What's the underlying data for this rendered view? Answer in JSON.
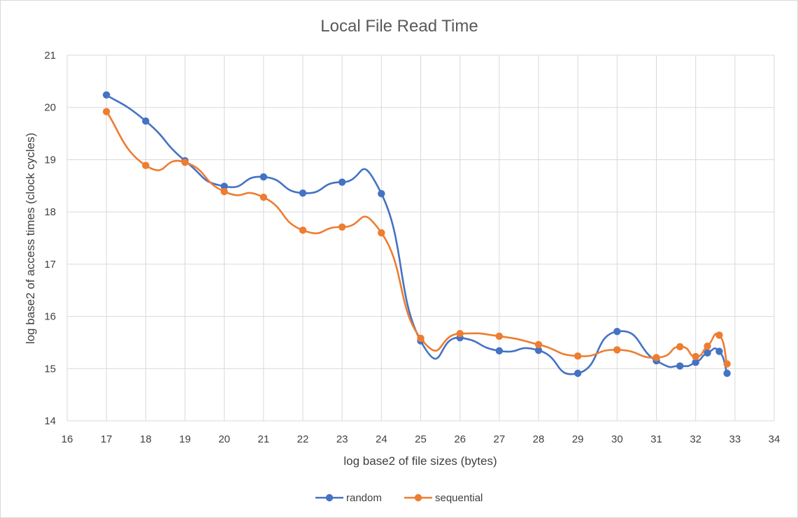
{
  "chart_data": {
    "type": "line",
    "title": "Local File Read Time",
    "xlabel": "log base2 of file sizes (bytes)",
    "ylabel": "log base2 of access times (clock cycles)",
    "xlim": [
      16,
      34
    ],
    "ylim": [
      14,
      21
    ],
    "xticks": [
      16,
      17,
      18,
      19,
      20,
      21,
      22,
      23,
      24,
      25,
      26,
      27,
      28,
      29,
      30,
      31,
      32,
      33,
      34
    ],
    "yticks": [
      14,
      15,
      16,
      17,
      18,
      19,
      20,
      21
    ],
    "grid": true,
    "smooth": true,
    "legend_position": "bottom",
    "series": [
      {
        "name": "random",
        "color": "#4472c4",
        "points": [
          [
            17,
            20.24
          ],
          [
            18,
            19.74
          ],
          [
            19,
            18.98
          ],
          [
            20,
            18.49
          ],
          [
            21,
            18.67
          ],
          [
            22,
            18.36
          ],
          [
            23,
            18.57
          ],
          [
            24,
            18.35
          ],
          [
            25,
            15.53
          ],
          [
            26,
            15.59
          ],
          [
            27,
            15.34
          ],
          [
            28,
            15.35
          ],
          [
            29,
            14.91
          ],
          [
            30,
            15.71
          ],
          [
            31,
            15.15
          ],
          [
            31.6,
            15.05
          ],
          [
            32,
            15.12
          ],
          [
            32.3,
            15.3
          ],
          [
            32.6,
            15.33
          ],
          [
            32.8,
            14.91
          ]
        ]
      },
      {
        "name": "sequential",
        "color": "#ed7d31",
        "points": [
          [
            17,
            19.92
          ],
          [
            18,
            18.89
          ],
          [
            19,
            18.95
          ],
          [
            20,
            18.39
          ],
          [
            21,
            18.28
          ],
          [
            22,
            17.65
          ],
          [
            23,
            17.71
          ],
          [
            24,
            17.6
          ],
          [
            25,
            15.58
          ],
          [
            26,
            15.67
          ],
          [
            27,
            15.62
          ],
          [
            28,
            15.46
          ],
          [
            29,
            15.24
          ],
          [
            30,
            15.36
          ],
          [
            31,
            15.21
          ],
          [
            31.6,
            15.42
          ],
          [
            32,
            15.23
          ],
          [
            32.3,
            15.43
          ],
          [
            32.6,
            15.64
          ],
          [
            32.8,
            15.09
          ]
        ]
      }
    ]
  }
}
